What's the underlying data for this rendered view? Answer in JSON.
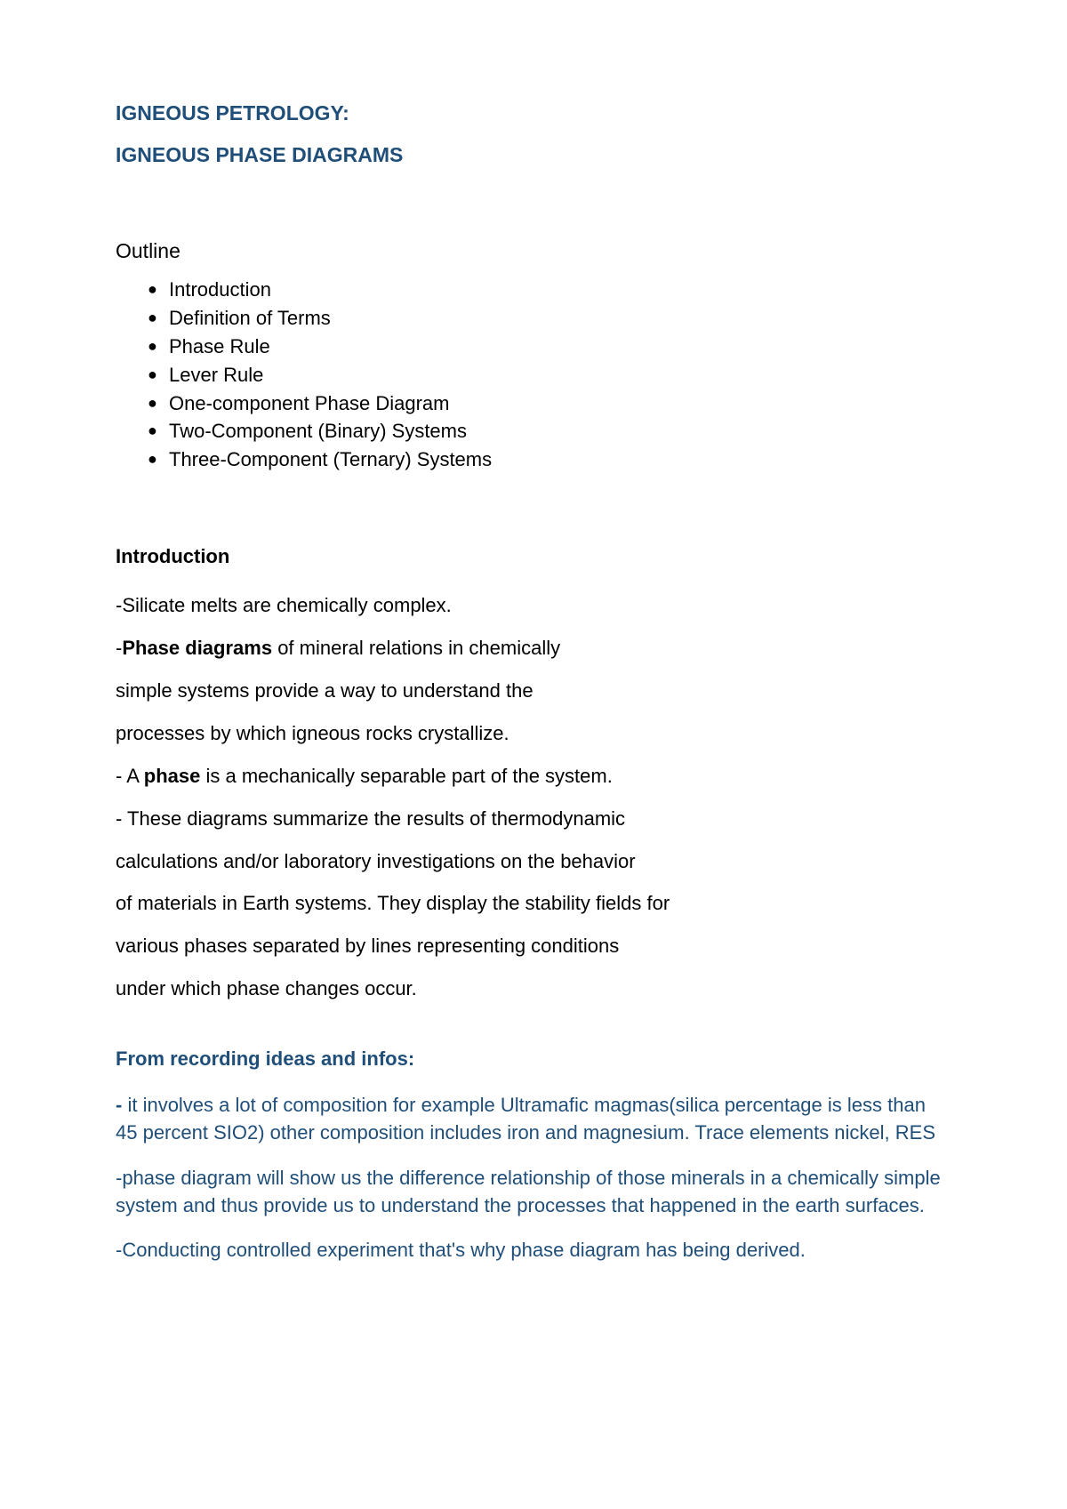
{
  "header": {
    "title1": "IGNEOUS PETROLOGY:",
    "title2": "IGNEOUS PHASE DIAGRAMS"
  },
  "outline": {
    "label": "Outline",
    "box_marker": "",
    "items": [
      "Introduction",
      "Definition of Terms",
      "Phase Rule",
      "Lever Rule",
      "One-component Phase Diagram",
      "Two-Component (Binary) Systems",
      "Three-Component (Ternary) Systems"
    ]
  },
  "introduction": {
    "heading": "Introduction",
    "lines": [
      {
        "box": true,
        "prefix": "-",
        "text": "Silicate melts are chemically complex."
      },
      {
        "box": true,
        "prefix": "-",
        "bold": "Phase diagrams",
        "text": " of mineral relations in chemically"
      },
      {
        "box": false,
        "text": "simple systems provide a way to understand the"
      },
      {
        "box": false,
        "text": "processes by which igneous rocks crystallize."
      },
      {
        "box": false,
        "prefix": " - A ",
        "bold": "phase",
        "text": " is a mechanically separable part of the system."
      },
      {
        "box": false,
        "prefix": "- ",
        "text": "These diagrams summarize the results of thermodynamic"
      },
      {
        "box": false,
        "text": "calculations and/or laboratory investigations on the behavior"
      },
      {
        "box": false,
        "text": "of materials in Earth systems. They display the stability fields for"
      },
      {
        "box": false,
        "text": "various phases separated by lines representing conditions"
      },
      {
        "box": false,
        "text": "under which phase changes occur."
      }
    ]
  },
  "notes": {
    "heading": "From recording ideas and infos:",
    "paras": [
      {
        "prefix": "- ",
        "text": "it involves a lot of composition for example Ultramafic magmas(silica percentage is less than 45 percent SIO2) other composition includes iron and magnesium. Trace elements nickel, RES"
      },
      {
        "prefix": "-",
        "text": "phase diagram will show us the difference relationship of those minerals in a chemically simple system and thus provide us to understand the processes that happened  in the earth surfaces."
      },
      {
        "prefix": "-",
        "text": "Conducting controlled experiment that's why phase diagram has being derived."
      }
    ]
  },
  "style": {
    "heading_color": "#1f4e79",
    "body_color": "#000000",
    "notes_color": "#1f4e79",
    "box_color": "#a0a0a0",
    "background": "#ffffff",
    "font_family": "Arial",
    "title_fontsize": 23,
    "body_fontsize": 22
  }
}
